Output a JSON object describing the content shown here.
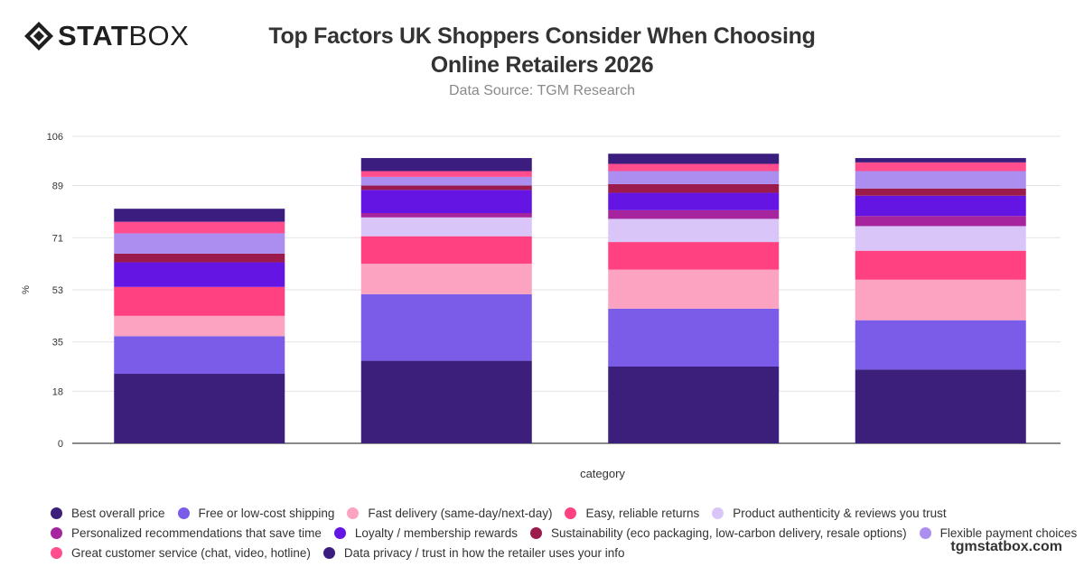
{
  "brand": {
    "bold": "STAT",
    "thin": "BOX",
    "watermark": "tgmstatbox.com"
  },
  "title_line1": "Top Factors UK Shoppers Consider When Choosing",
  "title_line2": "Online Retailers 2026",
  "subtitle": "Data Source: TGM Research",
  "chart_data": {
    "type": "bar",
    "stacked": true,
    "xlabel": "category",
    "ylabel": "%",
    "ylim": [
      0,
      106
    ],
    "yticks": [
      0,
      18,
      35,
      53,
      71,
      89,
      106
    ],
    "grid": true,
    "legend_position": "bottom",
    "categories": [
      "",
      "",
      "",
      ""
    ],
    "series": [
      {
        "name": "Best overall price",
        "color": "#3b1f7a",
        "values": [
          24,
          28.5,
          26.5,
          25.5
        ]
      },
      {
        "name": "Free or low-cost shipping",
        "color": "#7b5ce8",
        "values": [
          13,
          23,
          20,
          17
        ]
      },
      {
        "name": "Fast delivery (same-day/next-day)",
        "color": "#fba3c0",
        "values": [
          7,
          10.5,
          13.5,
          14
        ]
      },
      {
        "name": "Easy, reliable returns",
        "color": "#ff4081",
        "values": [
          10,
          9.5,
          9.5,
          10
        ]
      },
      {
        "name": "Product authenticity & reviews you trust",
        "color": "#d9c5f8",
        "values": [
          0,
          6.5,
          8,
          8.5
        ]
      },
      {
        "name": "Personalized recommendations that save time",
        "color": "#a6259e",
        "values": [
          0,
          1.5,
          3,
          3.5
        ]
      },
      {
        "name": "Loyalty / membership rewards",
        "color": "#6414e3",
        "values": [
          8.5,
          8,
          6,
          7
        ]
      },
      {
        "name": "Sustainability (eco packaging, low-carbon delivery, resale options)",
        "color": "#9a1b4c",
        "values": [
          3,
          1.5,
          3,
          2.5
        ]
      },
      {
        "name": "Flexible payment choices",
        "color": "#ab8ef0",
        "values": [
          7,
          3,
          4.5,
          6
        ]
      },
      {
        "name": "Great customer service (chat, video, hotline)",
        "color": "#ff4d8d",
        "values": [
          4,
          2,
          2.5,
          3
        ]
      },
      {
        "name": "Data privacy / trust in how the retailer uses your info",
        "color": "#3a1d7e",
        "values": [
          4.5,
          4.5,
          3.5,
          1.5
        ]
      }
    ]
  }
}
